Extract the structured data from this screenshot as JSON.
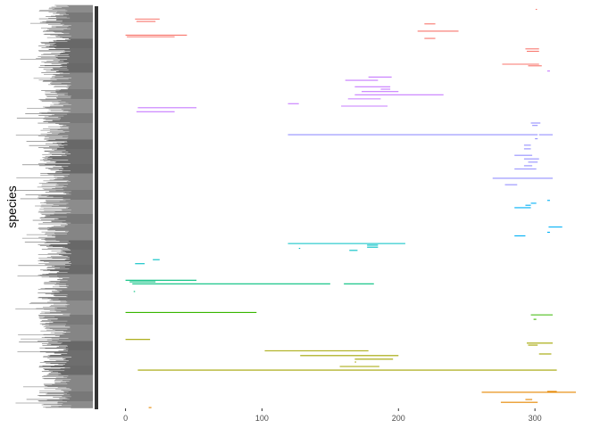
{
  "chart_data": {
    "type": "range-segments",
    "ylabel": "species",
    "xlim": [
      -20,
      330
    ],
    "x_ticks": [
      0,
      100,
      200,
      300
    ],
    "grid": false,
    "legend": "none",
    "y_tick_labels_legible": false,
    "y_index_range": [
      0,
      1
    ],
    "segments": [
      {
        "x0": 300.5,
        "x1": 301.5,
        "y": 0.01,
        "color": "#F8766D"
      },
      {
        "x0": 7,
        "x1": 25,
        "y": 0.034,
        "color": "#F8766D"
      },
      {
        "x0": 8,
        "x1": 22,
        "y": 0.04,
        "color": "#F8766D"
      },
      {
        "x0": 219,
        "x1": 227,
        "y": 0.046,
        "color": "#F8766D"
      },
      {
        "x0": 214,
        "x1": 244,
        "y": 0.064,
        "color": "#F8766D"
      },
      {
        "x0": 0,
        "x1": 45,
        "y": 0.074,
        "color": "#F8766D"
      },
      {
        "x0": 1,
        "x1": 36,
        "y": 0.078,
        "color": "#F8766D"
      },
      {
        "x0": 219,
        "x1": 227,
        "y": 0.082,
        "color": "#F8766D"
      },
      {
        "x0": 293,
        "x1": 303,
        "y": 0.108,
        "color": "#F8766D"
      },
      {
        "x0": 294,
        "x1": 303,
        "y": 0.114,
        "color": "#F8766D"
      },
      {
        "x0": 276,
        "x1": 303,
        "y": 0.146,
        "color": "#F8766D"
      },
      {
        "x0": 295,
        "x1": 305,
        "y": 0.15,
        "color": "#F8766D"
      },
      {
        "x0": 309,
        "x1": 311,
        "y": 0.163,
        "color": "#C77CFF"
      },
      {
        "x0": 178,
        "x1": 195,
        "y": 0.178,
        "color": "#C77CFF"
      },
      {
        "x0": 161,
        "x1": 185,
        "y": 0.186,
        "color": "#C77CFF"
      },
      {
        "x0": 168,
        "x1": 194,
        "y": 0.202,
        "color": "#C77CFF"
      },
      {
        "x0": 187,
        "x1": 194,
        "y": 0.208,
        "color": "#C77CFF"
      },
      {
        "x0": 173,
        "x1": 200,
        "y": 0.214,
        "color": "#C77CFF"
      },
      {
        "x0": 168,
        "x1": 233,
        "y": 0.222,
        "color": "#C77CFF"
      },
      {
        "x0": 163,
        "x1": 187,
        "y": 0.232,
        "color": "#C77CFF"
      },
      {
        "x0": 119,
        "x1": 127,
        "y": 0.244,
        "color": "#C77CFF"
      },
      {
        "x0": 158,
        "x1": 192,
        "y": 0.25,
        "color": "#C77CFF"
      },
      {
        "x0": 9,
        "x1": 52,
        "y": 0.254,
        "color": "#C77CFF"
      },
      {
        "x0": 8,
        "x1": 36,
        "y": 0.264,
        "color": "#C77CFF"
      },
      {
        "x0": 297,
        "x1": 304,
        "y": 0.292,
        "color": "#9590FF"
      },
      {
        "x0": 298,
        "x1": 302,
        "y": 0.298,
        "color": "#9590FF"
      },
      {
        "x0": 119,
        "x1": 302,
        "y": 0.321,
        "color": "#9590FF"
      },
      {
        "x0": 303,
        "x1": 313,
        "y": 0.321,
        "color": "#9590FF"
      },
      {
        "x0": 300,
        "x1": 302,
        "y": 0.331,
        "color": "#9590FF"
      },
      {
        "x0": 292,
        "x1": 297,
        "y": 0.347,
        "color": "#9590FF"
      },
      {
        "x0": 292,
        "x1": 297,
        "y": 0.356,
        "color": "#9590FF"
      },
      {
        "x0": 285,
        "x1": 298,
        "y": 0.372,
        "color": "#9590FF"
      },
      {
        "x0": 292,
        "x1": 303,
        "y": 0.381,
        "color": "#9590FF"
      },
      {
        "x0": 295,
        "x1": 302,
        "y": 0.389,
        "color": "#9590FF"
      },
      {
        "x0": 292,
        "x1": 298,
        "y": 0.398,
        "color": "#9590FF"
      },
      {
        "x0": 285,
        "x1": 301,
        "y": 0.406,
        "color": "#9590FF"
      },
      {
        "x0": 269,
        "x1": 313,
        "y": 0.429,
        "color": "#9590FF"
      },
      {
        "x0": 278,
        "x1": 287,
        "y": 0.445,
        "color": "#9590FF"
      },
      {
        "x0": 309,
        "x1": 311,
        "y": 0.484,
        "color": "#00B0F6"
      },
      {
        "x0": 297,
        "x1": 301,
        "y": 0.491,
        "color": "#00B0F6"
      },
      {
        "x0": 293,
        "x1": 297,
        "y": 0.496,
        "color": "#00B0F6"
      },
      {
        "x0": 285,
        "x1": 297,
        "y": 0.502,
        "color": "#00B0F6"
      },
      {
        "x0": 310,
        "x1": 320,
        "y": 0.55,
        "color": "#00B0F6"
      },
      {
        "x0": 309,
        "x1": 311,
        "y": 0.563,
        "color": "#00B0F6"
      },
      {
        "x0": 285,
        "x1": 293,
        "y": 0.572,
        "color": "#00B0F6"
      },
      {
        "x0": 119,
        "x1": 205,
        "y": 0.591,
        "color": "#00BFC4"
      },
      {
        "x0": 177,
        "x1": 185,
        "y": 0.595,
        "color": "#00BFC4"
      },
      {
        "x0": 177,
        "x1": 185,
        "y": 0.6,
        "color": "#00BFC4"
      },
      {
        "x0": 127,
        "x1": 128,
        "y": 0.603,
        "color": "#00BFC4"
      },
      {
        "x0": 164,
        "x1": 170,
        "y": 0.608,
        "color": "#00BFC4"
      },
      {
        "x0": 20,
        "x1": 25,
        "y": 0.631,
        "color": "#00BFC4"
      },
      {
        "x0": 7,
        "x1": 14,
        "y": 0.641,
        "color": "#00BFC4"
      },
      {
        "x0": 0,
        "x1": 52,
        "y": 0.682,
        "color": "#00BF7D"
      },
      {
        "x0": 3,
        "x1": 22,
        "y": 0.686,
        "color": "#00BF7D"
      },
      {
        "x0": 5,
        "x1": 150,
        "y": 0.691,
        "color": "#00BF7D"
      },
      {
        "x0": 160,
        "x1": 182,
        "y": 0.691,
        "color": "#00BF7D"
      },
      {
        "x0": 6,
        "x1": 7,
        "y": 0.71,
        "color": "#00BF7D"
      },
      {
        "x0": 0,
        "x1": 96,
        "y": 0.762,
        "color": "#39B600"
      },
      {
        "x0": 297,
        "x1": 313,
        "y": 0.768,
        "color": "#39B600"
      },
      {
        "x0": 299,
        "x1": 301,
        "y": 0.779,
        "color": "#39B600"
      },
      {
        "x0": 0,
        "x1": 18,
        "y": 0.829,
        "color": "#A3A500"
      },
      {
        "x0": 294,
        "x1": 313,
        "y": 0.838,
        "color": "#A3A500"
      },
      {
        "x0": 295,
        "x1": 302,
        "y": 0.843,
        "color": "#A3A500"
      },
      {
        "x0": 102,
        "x1": 178,
        "y": 0.857,
        "color": "#A3A500"
      },
      {
        "x0": 303,
        "x1": 312,
        "y": 0.865,
        "color": "#A3A500"
      },
      {
        "x0": 128,
        "x1": 200,
        "y": 0.869,
        "color": "#A3A500"
      },
      {
        "x0": 168,
        "x1": 196,
        "y": 0.878,
        "color": "#A3A500"
      },
      {
        "x0": 168,
        "x1": 169,
        "y": 0.885,
        "color": "#A3A500"
      },
      {
        "x0": 157,
        "x1": 186,
        "y": 0.896,
        "color": "#A3A500"
      },
      {
        "x0": 9,
        "x1": 316,
        "y": 0.905,
        "color": "#A3A500"
      },
      {
        "x0": 261,
        "x1": 330,
        "y": 0.96,
        "color": "#E58700"
      },
      {
        "x0": 309,
        "x1": 316,
        "y": 0.958,
        "color": "#E58700"
      },
      {
        "x0": 293,
        "x1": 298,
        "y": 0.978,
        "color": "#E58700"
      },
      {
        "x0": 275,
        "x1": 302,
        "y": 0.985,
        "color": "#E58700"
      },
      {
        "x0": 17,
        "x1": 19,
        "y": 0.998,
        "color": "#E58700"
      }
    ]
  }
}
